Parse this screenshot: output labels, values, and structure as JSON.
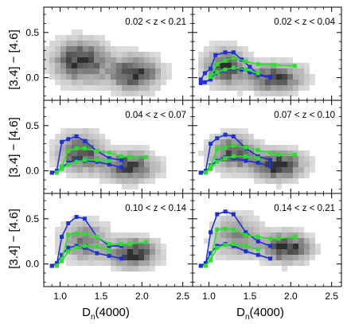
{
  "figure": {
    "ylabel": "[3.4] − [4.6]",
    "xlabel": "D",
    "xlabel_sub": "n",
    "xlabel_tail": "(4000)",
    "xticks": [
      1.0,
      1.5,
      2.0,
      2.5
    ],
    "yticks": [
      0.0,
      0.5
    ],
    "xlim": [
      0.8,
      2.62
    ],
    "ylim": [
      -0.25,
      0.78
    ],
    "colors": {
      "blue": "#1f2fd6",
      "green": "#2be02b",
      "density": "#000000"
    }
  },
  "chart_data": [
    {
      "type": "scatter",
      "title": "0.02 < z < 0.21",
      "series": [],
      "density_clusters": [
        {
          "x": 1.25,
          "y": 0.18,
          "sx": 0.2,
          "sy": 0.14,
          "w": 1.0
        },
        {
          "x": 1.9,
          "y": 0.05,
          "sx": 0.2,
          "sy": 0.12,
          "w": 0.95
        }
      ]
    },
    {
      "type": "line",
      "title": "0.02 < z < 0.04",
      "series": [
        {
          "color": "blue",
          "x": [
            0.9,
            0.95,
            1.02,
            1.08,
            1.2,
            1.3,
            1.4,
            1.5,
            1.6,
            1.75
          ],
          "y": [
            -0.02,
            0.05,
            0.1,
            0.25,
            0.28,
            0.28,
            0.2,
            0.12,
            0.04,
            0.01
          ]
        },
        {
          "color": "blue",
          "x": [
            0.9,
            0.95,
            1.02,
            1.08,
            1.2,
            1.3,
            1.4,
            1.5,
            1.6,
            1.75
          ],
          "y": [
            -0.06,
            -0.05,
            -0.02,
            0.05,
            0.08,
            0.1,
            0.09,
            0.06,
            0.03,
            0.0
          ]
        },
        {
          "color": "green",
          "x": [
            1.02,
            1.1,
            1.2,
            1.3,
            1.45,
            1.6,
            1.8,
            2.05
          ],
          "y": [
            0.02,
            0.15,
            0.19,
            0.22,
            0.18,
            0.15,
            0.14,
            0.13
          ]
        },
        {
          "color": "green",
          "x": [
            1.02,
            1.1,
            1.2,
            1.3,
            1.45,
            1.6
          ],
          "y": [
            0.01,
            0.06,
            0.09,
            0.11,
            0.09,
            0.05
          ]
        }
      ],
      "density_clusters": [
        {
          "x": 1.2,
          "y": 0.12,
          "sx": 0.16,
          "sy": 0.13,
          "w": 0.85
        },
        {
          "x": 1.8,
          "y": 0.0,
          "sx": 0.22,
          "sy": 0.1,
          "w": 0.85
        }
      ]
    },
    {
      "type": "line",
      "title": "0.04 < z < 0.07",
      "series": [
        {
          "color": "blue",
          "x": [
            0.9,
            0.96,
            1.02,
            1.1,
            1.2,
            1.3,
            1.45,
            1.6,
            1.75
          ],
          "y": [
            -0.02,
            0.0,
            0.32,
            0.35,
            0.38,
            0.33,
            0.22,
            0.14,
            0.12
          ]
        },
        {
          "color": "blue",
          "x": [
            0.9,
            0.96,
            1.02,
            1.1,
            1.2,
            1.3,
            1.45,
            1.6,
            1.75
          ],
          "y": [
            -0.02,
            -0.01,
            0.04,
            0.09,
            0.12,
            0.11,
            0.1,
            0.07,
            0.04
          ]
        },
        {
          "color": "green",
          "x": [
            0.96,
            1.02,
            1.1,
            1.2,
            1.3,
            1.45,
            1.6,
            1.75,
            1.85,
            2.05
          ],
          "y": [
            -0.02,
            0.05,
            0.22,
            0.25,
            0.25,
            0.22,
            0.2,
            0.16,
            0.15,
            0.15
          ]
        },
        {
          "color": "green",
          "x": [
            0.96,
            1.02,
            1.1,
            1.2,
            1.3,
            1.45,
            1.6
          ],
          "y": [
            -0.02,
            0.02,
            0.07,
            0.1,
            0.12,
            0.12,
            0.11
          ]
        }
      ],
      "density_clusters": [
        {
          "x": 1.25,
          "y": 0.2,
          "sx": 0.17,
          "sy": 0.13,
          "w": 0.9
        },
        {
          "x": 1.85,
          "y": 0.05,
          "sx": 0.2,
          "sy": 0.1,
          "w": 0.95
        }
      ]
    },
    {
      "type": "line",
      "title": "0.07 < z < 0.10",
      "series": [
        {
          "color": "blue",
          "x": [
            0.9,
            0.96,
            1.02,
            1.1,
            1.2,
            1.3,
            1.45,
            1.6,
            1.75
          ],
          "y": [
            -0.02,
            0.0,
            0.3,
            0.36,
            0.4,
            0.38,
            0.25,
            0.16,
            0.12
          ]
        },
        {
          "color": "blue",
          "x": [
            0.9,
            0.96,
            1.02,
            1.1,
            1.2,
            1.3,
            1.45,
            1.6,
            1.75
          ],
          "y": [
            -0.02,
            -0.01,
            0.06,
            0.11,
            0.15,
            0.14,
            0.11,
            0.09,
            0.05
          ]
        },
        {
          "color": "green",
          "x": [
            0.96,
            1.02,
            1.1,
            1.2,
            1.3,
            1.45,
            1.6,
            1.75,
            1.85,
            2.05
          ],
          "y": [
            -0.02,
            0.05,
            0.24,
            0.26,
            0.28,
            0.26,
            0.23,
            0.2,
            0.18,
            0.18
          ]
        },
        {
          "color": "green",
          "x": [
            0.96,
            1.02,
            1.1,
            1.2,
            1.3,
            1.45,
            1.6
          ],
          "y": [
            -0.02,
            0.02,
            0.1,
            0.14,
            0.16,
            0.16,
            0.14
          ]
        }
      ],
      "density_clusters": [
        {
          "x": 1.3,
          "y": 0.2,
          "sx": 0.18,
          "sy": 0.12,
          "w": 0.8
        },
        {
          "x": 1.85,
          "y": 0.06,
          "sx": 0.19,
          "sy": 0.1,
          "w": 1.0
        }
      ]
    },
    {
      "type": "line",
      "title": "0.10 < z < 0.14",
      "series": [
        {
          "color": "blue",
          "x": [
            0.9,
            0.96,
            1.02,
            1.1,
            1.2,
            1.3,
            1.45,
            1.6,
            1.75
          ],
          "y": [
            -0.02,
            0.0,
            0.3,
            0.45,
            0.52,
            0.5,
            0.3,
            0.2,
            0.2
          ]
        },
        {
          "color": "blue",
          "x": [
            0.9,
            0.96,
            1.02,
            1.1,
            1.2,
            1.3,
            1.45,
            1.6,
            1.75
          ],
          "y": [
            -0.02,
            0.01,
            0.1,
            0.18,
            0.2,
            0.18,
            0.12,
            0.09,
            0.06
          ]
        },
        {
          "color": "green",
          "x": [
            0.96,
            1.02,
            1.1,
            1.2,
            1.3,
            1.45,
            1.6,
            1.75,
            1.85,
            2.05
          ],
          "y": [
            -0.02,
            0.05,
            0.32,
            0.34,
            0.33,
            0.3,
            0.22,
            0.22,
            0.22,
            0.24
          ]
        },
        {
          "color": "green",
          "x": [
            0.96,
            1.02,
            1.1,
            1.2,
            1.3,
            1.45,
            1.6
          ],
          "y": [
            -0.02,
            0.03,
            0.14,
            0.18,
            0.2,
            0.19,
            0.15
          ]
        }
      ],
      "density_clusters": [
        {
          "x": 1.3,
          "y": 0.25,
          "sx": 0.18,
          "sy": 0.14,
          "w": 0.6
        },
        {
          "x": 1.9,
          "y": 0.12,
          "sx": 0.18,
          "sy": 0.1,
          "w": 1.0
        }
      ]
    },
    {
      "type": "line",
      "title": "0.14 < z < 0.21",
      "series": [
        {
          "color": "blue",
          "x": [
            0.9,
            0.96,
            1.02,
            1.1,
            1.2,
            1.3,
            1.45,
            1.6,
            1.75
          ],
          "y": [
            -0.02,
            0.0,
            0.35,
            0.55,
            0.58,
            0.55,
            0.35,
            0.25,
            0.2
          ]
        },
        {
          "color": "blue",
          "x": [
            0.9,
            0.96,
            1.02,
            1.1,
            1.2,
            1.3,
            1.45,
            1.6,
            1.75
          ],
          "y": [
            -0.02,
            0.01,
            0.12,
            0.2,
            0.22,
            0.2,
            0.14,
            0.1,
            0.06
          ]
        },
        {
          "color": "green",
          "x": [
            0.96,
            1.02,
            1.1,
            1.2,
            1.3,
            1.45,
            1.6,
            1.75,
            1.85,
            2.05
          ],
          "y": [
            -0.02,
            0.05,
            0.38,
            0.39,
            0.38,
            0.32,
            0.3,
            0.28,
            0.28,
            0.3
          ]
        },
        {
          "color": "green",
          "x": [
            0.96,
            1.02,
            1.1,
            1.2,
            1.3,
            1.45,
            1.6
          ],
          "y": [
            -0.02,
            0.04,
            0.18,
            0.21,
            0.22,
            0.2,
            0.16
          ]
        }
      ],
      "density_clusters": [
        {
          "x": 1.35,
          "y": 0.3,
          "sx": 0.2,
          "sy": 0.15,
          "w": 0.5
        },
        {
          "x": 1.95,
          "y": 0.18,
          "sx": 0.18,
          "sy": 0.1,
          "w": 1.0
        }
      ]
    }
  ]
}
